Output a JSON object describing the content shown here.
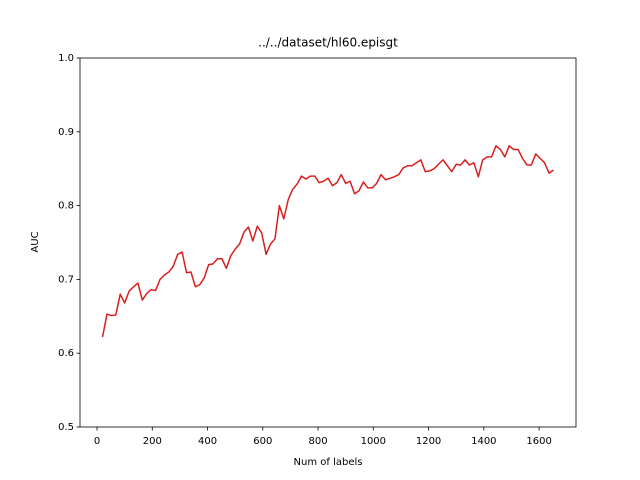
{
  "chart_data": {
    "type": "line",
    "title": "../../dataset/hl60.episgt",
    "x_label": "Num of labels",
    "y_label": "AUC",
    "x": [
      20,
      36,
      52,
      68,
      84,
      100,
      116,
      132,
      148,
      164,
      180,
      196,
      212,
      228,
      244,
      260,
      276,
      292,
      308,
      324,
      340,
      356,
      372,
      388,
      404,
      420,
      436,
      452,
      468,
      484,
      500,
      516,
      532,
      548,
      564,
      580,
      596,
      612,
      628,
      644,
      660,
      676,
      692,
      708,
      724,
      740,
      756,
      772,
      788,
      804,
      820,
      836,
      852,
      868,
      884,
      900,
      916,
      932,
      948,
      964,
      980,
      996,
      1012,
      1028,
      1044,
      1060,
      1076,
      1092,
      1108,
      1124,
      1140,
      1156,
      1172,
      1188,
      1204,
      1220,
      1236,
      1252,
      1268,
      1284,
      1300,
      1316,
      1332,
      1348,
      1364,
      1380,
      1396,
      1412,
      1428,
      1444,
      1460,
      1476,
      1492,
      1508,
      1524,
      1540,
      1556,
      1572,
      1588,
      1604,
      1620,
      1636,
      1652
    ],
    "series": [
      {
        "color": "#d62020",
        "values": [
          0.622,
          0.653,
          0.651,
          0.652,
          0.68,
          0.668,
          0.684,
          0.69,
          0.695,
          0.672,
          0.681,
          0.686,
          0.685,
          0.7,
          0.706,
          0.71,
          0.718,
          0.734,
          0.737,
          0.709,
          0.71,
          0.69,
          0.693,
          0.702,
          0.72,
          0.721,
          0.728,
          0.728,
          0.715,
          0.732,
          0.741,
          0.748,
          0.764,
          0.771,
          0.752,
          0.772,
          0.763,
          0.734,
          0.748,
          0.755,
          0.8,
          0.782,
          0.808,
          0.822,
          0.829,
          0.84,
          0.836,
          0.84,
          0.84,
          0.831,
          0.833,
          0.837,
          0.827,
          0.831,
          0.842,
          0.83,
          0.833,
          0.816,
          0.82,
          0.832,
          0.824,
          0.824,
          0.83,
          0.842,
          0.835,
          0.837,
          0.839,
          0.842,
          0.851,
          0.854,
          0.854,
          0.858,
          0.862,
          0.846,
          0.847,
          0.85,
          0.856,
          0.862,
          0.854,
          0.846,
          0.856,
          0.855,
          0.862,
          0.855,
          0.858,
          0.839,
          0.862,
          0.866,
          0.866,
          0.881,
          0.876,
          0.866,
          0.881,
          0.876,
          0.876,
          0.864,
          0.855,
          0.855,
          0.87,
          0.864,
          0.858,
          0.844,
          0.848
        ]
      }
    ],
    "xlim": [
      -61.6,
      1733.6
    ],
    "xticks": [
      0,
      200,
      400,
      600,
      800,
      1000,
      1200,
      1400,
      1600
    ],
    "ylim": [
      0.5,
      1.0
    ],
    "yticks": [
      0.5,
      0.6,
      0.7,
      0.8,
      0.9,
      {
        "value": 1,
        "label": "1.0"
      }
    ]
  }
}
